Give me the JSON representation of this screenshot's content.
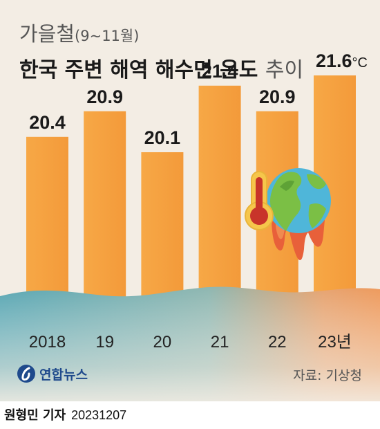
{
  "title": {
    "line1_main": "가을철",
    "line1_paren": "(9~11월)",
    "line2_bold": "한국 주변 해역 해수면 온도",
    "line2_light": "추이"
  },
  "chart_data": {
    "type": "bar",
    "categories": [
      "2018",
      "19",
      "20",
      "21",
      "22",
      "23년"
    ],
    "values": [
      20.4,
      20.9,
      20.1,
      21.4,
      20.9,
      21.6
    ],
    "data_labels": [
      "20.4",
      "20.9",
      "20.1",
      "21.4",
      "20.9",
      "21.6"
    ],
    "unit": "°C",
    "bar_color": "#f5a243",
    "grid": false,
    "legend": "none"
  },
  "source": "자료: 기상청",
  "logo": {
    "text": "연합뉴스",
    "icon": "yonhap-logo-icon"
  },
  "credit": {
    "reporter": "원형민 기자",
    "date": "20231207"
  },
  "colors": {
    "background": "#f3ede4",
    "sea": "#5fa9b4",
    "bar": "#f5a243",
    "logo": "#1f4a8c"
  }
}
